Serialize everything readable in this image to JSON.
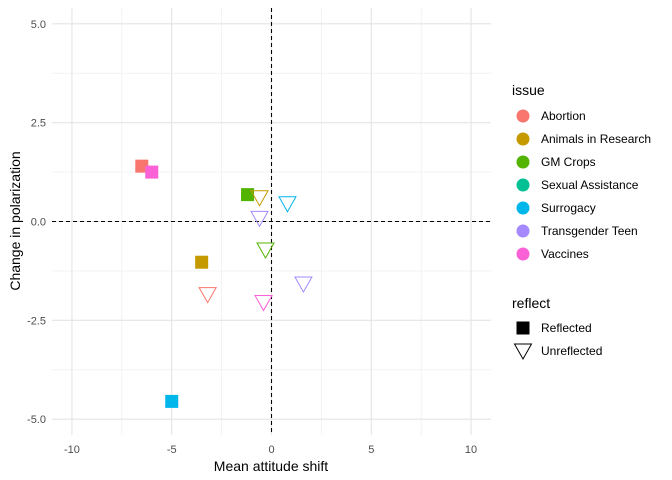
{
  "chart_data": {
    "type": "scatter",
    "title": "",
    "xlabel": "Mean attitude shift",
    "ylabel": "Change in polarization",
    "xlim": [
      -11,
      11
    ],
    "ylim": [
      -5.4,
      5.4
    ],
    "xticks": [
      -10,
      -5,
      0,
      5,
      10
    ],
    "yticks": [
      -5.0,
      -2.5,
      0.0,
      2.5,
      5.0
    ],
    "xtick_labels": [
      "-10",
      "-5",
      "0",
      "5",
      "10"
    ],
    "ytick_labels": [
      "-5.0",
      "-2.5",
      "0.0",
      "2.5",
      "5.0"
    ],
    "grid": true,
    "reference_lines": {
      "x": 0,
      "y": 0,
      "style": "dashed"
    },
    "legend_position": "right",
    "color_legend": {
      "title": "issue",
      "entries": [
        {
          "label": "Abortion",
          "color": "#F8766D"
        },
        {
          "label": "Animals in Research",
          "color": "#C49A00"
        },
        {
          "label": "GM Crops",
          "color": "#53B400"
        },
        {
          "label": "Sexual Assistance",
          "color": "#00C094"
        },
        {
          "label": "Surrogacy",
          "color": "#00B6EB"
        },
        {
          "label": "Transgender Teen",
          "color": "#A58AFF"
        },
        {
          "label": "Vaccines",
          "color": "#FB61D7"
        }
      ]
    },
    "shape_legend": {
      "title": "reflect",
      "entries": [
        {
          "label": "Reflected",
          "shape": "filled-square"
        },
        {
          "label": "Unreflected",
          "shape": "open-down-triangle"
        }
      ]
    },
    "points": [
      {
        "issue": "Abortion",
        "reflect": "Reflected",
        "x": -6.5,
        "y": 1.4
      },
      {
        "issue": "Vaccines",
        "reflect": "Reflected",
        "x": -6.0,
        "y": 1.25
      },
      {
        "issue": "GM Crops",
        "reflect": "Reflected",
        "x": -1.2,
        "y": 0.68
      },
      {
        "issue": "Animals in Research",
        "reflect": "Unreflected",
        "x": -0.6,
        "y": 0.6
      },
      {
        "issue": "Surrogacy",
        "reflect": "Unreflected",
        "x": 0.8,
        "y": 0.45
      },
      {
        "issue": "Transgender Teen",
        "reflect": "Unreflected",
        "x": -0.6,
        "y": 0.08
      },
      {
        "issue": "GM Crops",
        "reflect": "Unreflected",
        "x": -0.3,
        "y": -0.72
      },
      {
        "issue": "Animals in Research",
        "reflect": "Reflected",
        "x": -3.5,
        "y": -1.03
      },
      {
        "issue": "Transgender Teen",
        "reflect": "Unreflected",
        "x": 1.6,
        "y": -1.58
      },
      {
        "issue": "Abortion",
        "reflect": "Unreflected",
        "x": -3.2,
        "y": -1.85
      },
      {
        "issue": "Vaccines",
        "reflect": "Unreflected",
        "x": -0.4,
        "y": -2.05
      },
      {
        "issue": "Surrogacy",
        "reflect": "Reflected",
        "x": -5.0,
        "y": -4.55
      }
    ]
  }
}
